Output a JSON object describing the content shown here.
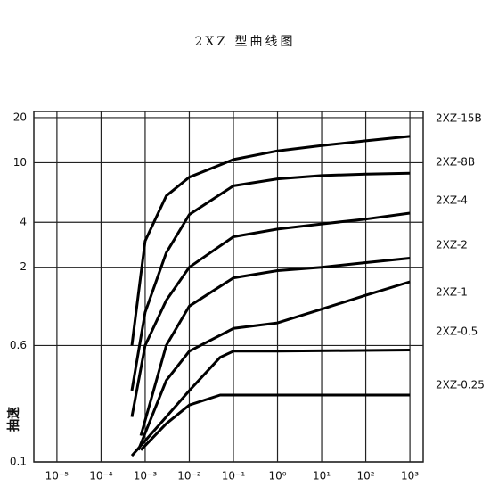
{
  "chart_data": {
    "type": "line",
    "title": "2XZ 型曲线图",
    "y_label": "抽速",
    "log_x": true,
    "log_y": true,
    "grid": true,
    "xlim": [
      3e-06,
      2000
    ],
    "ylim": [
      0.1,
      22
    ],
    "xticks": [
      {
        "value": 1e-05,
        "label": "10⁻⁵"
      },
      {
        "value": 0.0001,
        "label": "10⁻⁴"
      },
      {
        "value": 0.001,
        "label": "10⁻³"
      },
      {
        "value": 0.01,
        "label": "10⁻²"
      },
      {
        "value": 0.1,
        "label": "10⁻¹"
      },
      {
        "value": 1,
        "label": "10⁰"
      },
      {
        "value": 10,
        "label": "10¹"
      },
      {
        "value": 100,
        "label": "10²"
      },
      {
        "value": 1000,
        "label": "10³"
      }
    ],
    "yticks": [
      0.1,
      0.6,
      2,
      4,
      10,
      20
    ],
    "series": [
      {
        "name": "2XZ-15B",
        "color": "#000000",
        "x": [
          0.0005,
          0.001,
          0.003,
          0.01,
          0.1,
          1,
          10,
          100,
          1000
        ],
        "values": [
          0.6,
          3,
          6,
          8,
          10.5,
          12,
          13,
          14,
          15
        ]
      },
      {
        "name": "2XZ-8B",
        "color": "#000000",
        "x": [
          0.0005,
          0.001,
          0.003,
          0.01,
          0.1,
          1,
          10,
          100,
          1000
        ],
        "values": [
          0.3,
          1,
          2.5,
          4.5,
          7,
          7.8,
          8.2,
          8.4,
          8.5
        ]
      },
      {
        "name": "2XZ-4",
        "color": "#000000",
        "x": [
          0.0005,
          0.001,
          0.003,
          0.01,
          0.1,
          1,
          10,
          100,
          1000
        ],
        "values": [
          0.2,
          0.6,
          1.2,
          2,
          3.2,
          3.6,
          3.9,
          4.2,
          4.6
        ]
      },
      {
        "name": "2XZ-2",
        "color": "#000000",
        "x": [
          0.0008,
          0.003,
          0.01,
          0.1,
          1,
          10,
          100,
          1000
        ],
        "values": [
          0.15,
          0.6,
          1.1,
          1.7,
          1.9,
          2,
          2.15,
          2.3
        ]
      },
      {
        "name": "2XZ-1",
        "color": "#000000",
        "x": [
          0.0007,
          0.003,
          0.01,
          0.1,
          1,
          10,
          100,
          1000
        ],
        "values": [
          0.12,
          0.35,
          0.55,
          0.78,
          0.85,
          1.05,
          1.3,
          1.6
        ]
      },
      {
        "name": "2XZ-0.5",
        "color": "#000000",
        "x": [
          0.0005,
          0.003,
          0.01,
          0.05,
          0.1,
          1,
          1000
        ],
        "values": [
          0.11,
          0.2,
          0.3,
          0.5,
          0.55,
          0.55,
          0.56
        ]
      },
      {
        "name": "2XZ-0.25",
        "color": "#000000",
        "x": [
          0.0008,
          0.003,
          0.01,
          0.05,
          1000
        ],
        "values": [
          0.12,
          0.18,
          0.24,
          0.28,
          0.28
        ]
      }
    ]
  }
}
